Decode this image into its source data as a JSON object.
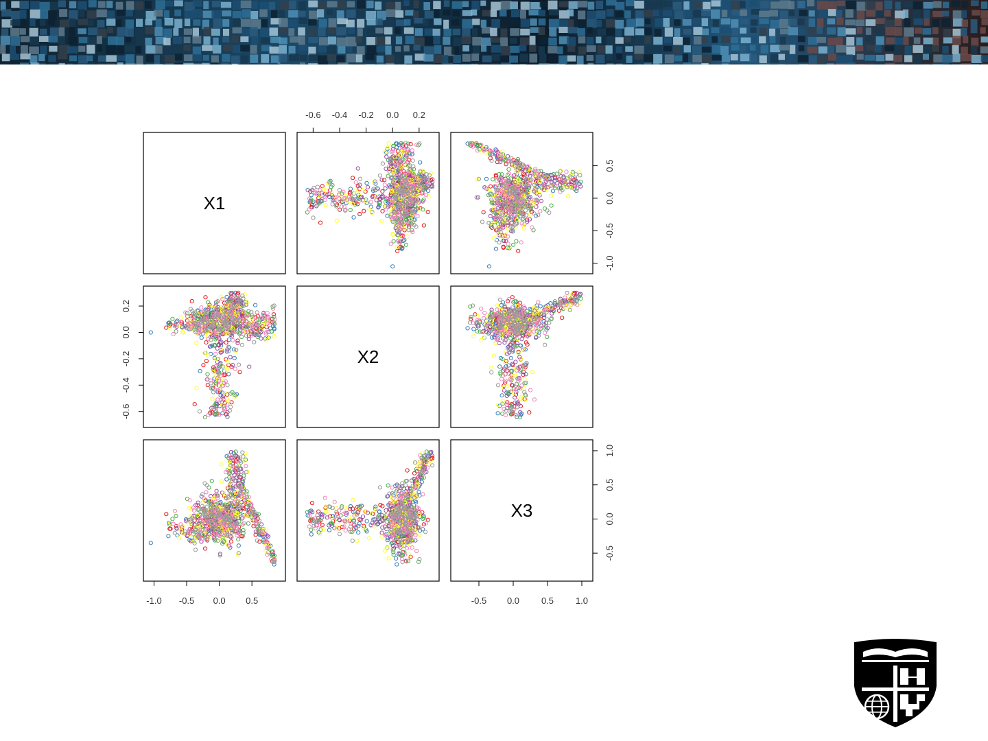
{
  "chart_data": {
    "type": "scatter",
    "title": "",
    "variables": [
      "X1",
      "X2",
      "X3"
    ],
    "ranges": {
      "X1": [
        -1.1,
        0.95
      ],
      "X2": [
        -0.69,
        0.32
      ],
      "X3": [
        -0.85,
        1.1
      ]
    },
    "ticks": {
      "X1": [
        "-1.0",
        "-0.5",
        "0.0",
        "0.5"
      ],
      "X2": [
        "-0.6",
        "-0.4",
        "-0.2",
        "0.0",
        "0.2"
      ],
      "X3": [
        "-0.5",
        "0.0",
        "0.5",
        "1.0"
      ]
    },
    "series": [
      {
        "color": "#377eb8"
      },
      {
        "color": "#e41a1c"
      },
      {
        "color": "#4daf4a"
      },
      {
        "color": "#984ea3"
      },
      {
        "color": "#ffff33"
      },
      {
        "color": "#f781bf"
      },
      {
        "color": "#999999"
      }
    ],
    "outliers": [
      {
        "X1": -1.05,
        "X2": 0.0,
        "X3": -0.35
      },
      {
        "X1": -0.78,
        "X2": 0.07,
        "X3": -0.25
      }
    ],
    "grid": false,
    "legend": "none",
    "points_per_series": 140,
    "marker": "open-circle"
  },
  "logo": {
    "name": "shield-logo"
  }
}
